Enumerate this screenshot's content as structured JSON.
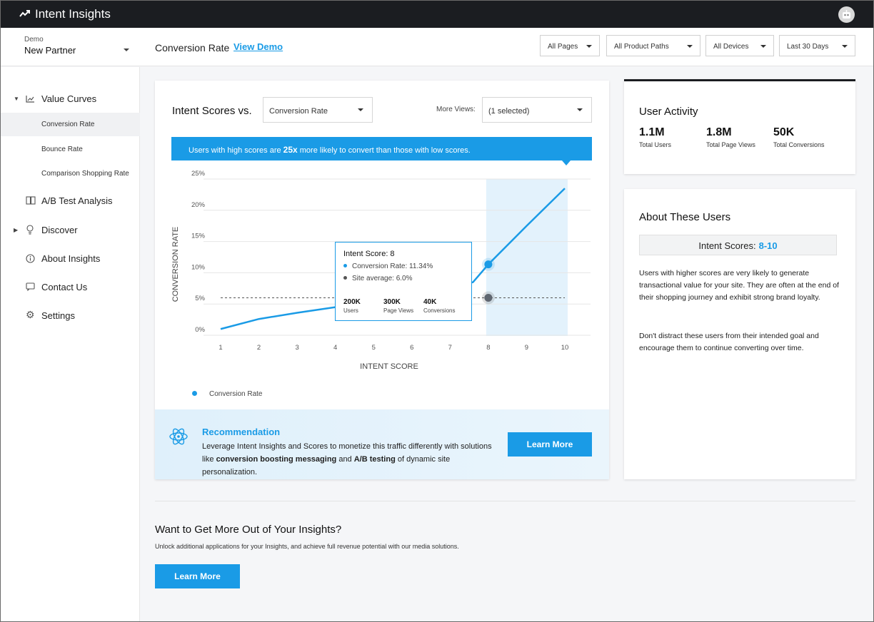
{
  "app": {
    "title": "Intent Insights",
    "icon": "trend-line-icon",
    "accent": "#1a9be6",
    "topbar_color": "#1b1d21"
  },
  "header": {
    "partner_label": "Demo",
    "partner_name": "New Partner",
    "page_title": "Conversion Rate",
    "view_demo": "View Demo",
    "filters": [
      "All Pages",
      "All Product Paths",
      "All Devices",
      "Last 30 Days"
    ]
  },
  "sidebar": {
    "value_curves": "Value Curves",
    "sub_items": [
      "Conversion Rate",
      "Bounce Rate",
      "Comparison Shopping Rate"
    ],
    "active_sub_item": "Conversion Rate",
    "ab_test": "A/B Test Analysis",
    "discover": "Discover",
    "about": "About Insights",
    "contact": "Contact Us",
    "settings": "Settings"
  },
  "main": {
    "title": "Intent Scores vs.",
    "metric_select": "Conversion Rate",
    "more_views_label": "More Views:",
    "more_views_value": "(1 selected)",
    "banner_pre": "Users with high scores are ",
    "banner_bold": "25x",
    "banner_post": " more likely to convert than those with low scores.",
    "legend": "Conversion Rate",
    "tooltip": {
      "title": "Intent Score: 8",
      "conversion": "Conversion Rate: 11.34%",
      "site_avg": "Site average: 6.0%",
      "stats": [
        {
          "value": "200K",
          "label": "Users"
        },
        {
          "value": "300K",
          "label": "Page Views"
        },
        {
          "value": "40K",
          "label": "Conversions"
        }
      ]
    },
    "recommendation": {
      "title": "Recommendation",
      "text_1": "Leverage Intent Insights and Scores to monetize this traffic differently with solutions like ",
      "bold_1": "conversion boosting messaging",
      "text_2": " and ",
      "bold_2": "A/B testing",
      "text_3": " of dynamic site personalization.",
      "button": "Learn More"
    }
  },
  "activity": {
    "title": "User Activity",
    "stats": [
      {
        "value": "1.1M",
        "label": "Total Users"
      },
      {
        "value": "1.8M",
        "label": "Total Page Views"
      },
      {
        "value": "50K",
        "label": "Total Conversions"
      }
    ]
  },
  "about_users": {
    "title": "About These Users",
    "scores_label": "Intent Scores:",
    "scores_value": "8-10",
    "p1": "Users with higher scores are very likely to generate transactional value for your site. They are often at the end of their shopping journey and exhibit strong brand loyalty.",
    "p2": "Don't distract these users from their intended goal and encourage them to continue converting over time."
  },
  "more": {
    "title": "Want to Get More Out of Your Insights?",
    "subtitle": "Unlock additional applications for your Insights, and achieve full revenue potential with our media solutions.",
    "button": "Learn More"
  },
  "chart_data": {
    "type": "line",
    "xlabel": "INTENT SCORE",
    "ylabel": "CONVERSION RATE",
    "x_ticks": [
      "1",
      "2",
      "3",
      "4",
      "5",
      "6",
      "7",
      "8",
      "9",
      "10"
    ],
    "y_ticks": [
      "0%",
      "5%",
      "10%",
      "15%",
      "20%",
      "25%"
    ],
    "xlim": [
      1,
      10
    ],
    "ylim": [
      0,
      25
    ],
    "series": [
      {
        "name": "Conversion Rate",
        "color": "#1a9be6",
        "x": [
          1,
          2,
          3,
          4,
          5,
          6,
          7,
          7.6,
          8,
          9,
          10
        ],
        "y": [
          1.0,
          2.6,
          3.6,
          4.5,
          5.5,
          6.5,
          7.5,
          8.5,
          11.34,
          17.5,
          23.5
        ]
      }
    ],
    "reference_line": {
      "label": "Site average",
      "value": 6.0
    },
    "highlight_range": [
      8,
      10
    ],
    "highlight_point": {
      "x": 8,
      "y": 11.34
    },
    "grid": true
  }
}
